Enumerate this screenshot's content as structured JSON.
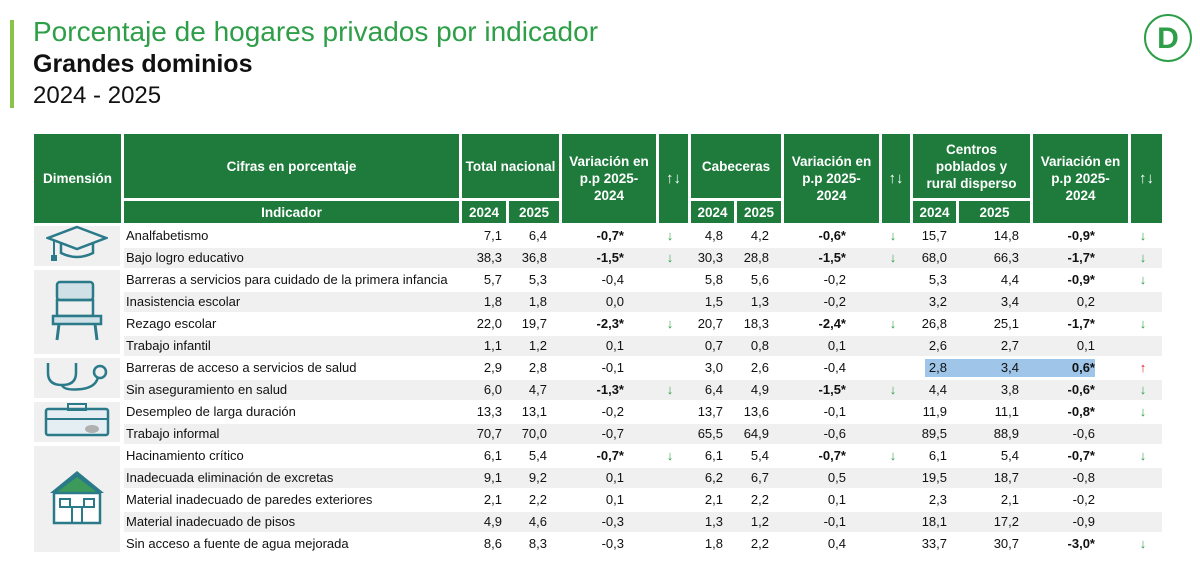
{
  "title": "Porcentaje de hogares privados por indicador",
  "subtitle": "Grandes dominios",
  "years": "2024 - 2025",
  "logo_letter": "D",
  "colors": {
    "header_bg": "#1e7b3b",
    "title": "#2e9e48",
    "down": "#2e9e48",
    "up": "#e02020",
    "highlight": "#9fc5e8"
  },
  "header": {
    "dimension": "Dimensión",
    "cifras": "Cifras en porcentaje",
    "indicador": "Indicador",
    "total_nacional": "Total nacional",
    "cabeceras": "Cabeceras",
    "centros": "Centros poblados y rural disperso",
    "variacion": "Variación en p.p 2025-2024",
    "arrows": "↑↓",
    "y2024": "2024",
    "y2025": "2025"
  },
  "dimensions": [
    {
      "icon": "graduation-cap-icon",
      "rows": [
        0,
        1
      ]
    },
    {
      "icon": "school-desk-icon",
      "rows": [
        2,
        5
      ]
    },
    {
      "icon": "stethoscope-icon",
      "rows": [
        6,
        7
      ]
    },
    {
      "icon": "briefcase-icon",
      "rows": [
        8,
        9
      ]
    },
    {
      "icon": "house-icon",
      "rows": [
        10,
        14
      ]
    }
  ],
  "rows": [
    {
      "indicador": "Analfabetismo",
      "tn": [
        "7,1",
        "6,4",
        "-0,7*",
        "↓"
      ],
      "cab": [
        "4,8",
        "4,2",
        "-0,6*",
        "↓"
      ],
      "cp": [
        "15,7",
        "14,8",
        "-0,9*",
        "↓"
      ]
    },
    {
      "indicador": "Bajo logro educativo",
      "tn": [
        "38,3",
        "36,8",
        "-1,5*",
        "↓"
      ],
      "cab": [
        "30,3",
        "28,8",
        "-1,5*",
        "↓"
      ],
      "cp": [
        "68,0",
        "66,3",
        "-1,7*",
        "↓"
      ]
    },
    {
      "indicador": "Barreras a servicios para cuidado de la primera infancia",
      "tn": [
        "5,7",
        "5,3",
        "-0,4",
        ""
      ],
      "cab": [
        "5,8",
        "5,6",
        "-0,2",
        ""
      ],
      "cp": [
        "5,3",
        "4,4",
        "-0,9*",
        "↓"
      ]
    },
    {
      "indicador": "Inasistencia escolar",
      "tn": [
        "1,8",
        "1,8",
        "0,0",
        ""
      ],
      "cab": [
        "1,5",
        "1,3",
        "-0,2",
        ""
      ],
      "cp": [
        "3,2",
        "3,4",
        "0,2",
        ""
      ]
    },
    {
      "indicador": "Rezago escolar",
      "tn": [
        "22,0",
        "19,7",
        "-2,3*",
        "↓"
      ],
      "cab": [
        "20,7",
        "18,3",
        "-2,4*",
        "↓"
      ],
      "cp": [
        "26,8",
        "25,1",
        "-1,7*",
        "↓"
      ]
    },
    {
      "indicador": "Trabajo infantil",
      "tn": [
        "1,1",
        "1,2",
        "0,1",
        ""
      ],
      "cab": [
        "0,7",
        "0,8",
        "0,1",
        ""
      ],
      "cp": [
        "2,6",
        "2,7",
        "0,1",
        ""
      ]
    },
    {
      "indicador": "Barreras de acceso a servicios de salud",
      "tn": [
        "2,9",
        "2,8",
        "-0,1",
        ""
      ],
      "cab": [
        "3,0",
        "2,6",
        "-0,4",
        ""
      ],
      "cp": [
        "2,8",
        "3,4",
        "0,6*",
        "↑"
      ]
    },
    {
      "indicador": "Sin aseguramiento en salud",
      "tn": [
        "6,0",
        "4,7",
        "-1,3*",
        "↓"
      ],
      "cab": [
        "6,4",
        "4,9",
        "-1,5*",
        "↓"
      ],
      "cp": [
        "4,4",
        "3,8",
        "-0,6*",
        "↓"
      ]
    },
    {
      "indicador": "Desempleo de larga duración",
      "tn": [
        "13,3",
        "13,1",
        "-0,2",
        ""
      ],
      "cab": [
        "13,7",
        "13,6",
        "-0,1",
        ""
      ],
      "cp": [
        "11,9",
        "11,1",
        "-0,8*",
        "↓"
      ]
    },
    {
      "indicador": "Trabajo informal",
      "tn": [
        "70,7",
        "70,0",
        "-0,7",
        ""
      ],
      "cab": [
        "65,5",
        "64,9",
        "-0,6",
        ""
      ],
      "cp": [
        "89,5",
        "88,9",
        "-0,6",
        ""
      ]
    },
    {
      "indicador": "Hacinamiento crítico",
      "tn": [
        "6,1",
        "5,4",
        "-0,7*",
        "↓"
      ],
      "cab": [
        "6,1",
        "5,4",
        "-0,7*",
        "↓"
      ],
      "cp": [
        "6,1",
        "5,4",
        "-0,7*",
        "↓"
      ]
    },
    {
      "indicador": "Inadecuada eliminación de excretas",
      "tn": [
        "9,1",
        "9,2",
        "0,1",
        ""
      ],
      "cab": [
        "6,2",
        "6,7",
        "0,5",
        ""
      ],
      "cp": [
        "19,5",
        "18,7",
        "-0,8",
        ""
      ]
    },
    {
      "indicador": "Material inadecuado de paredes exteriores",
      "tn": [
        "2,1",
        "2,2",
        "0,1",
        ""
      ],
      "cab": [
        "2,1",
        "2,2",
        "0,1",
        ""
      ],
      "cp": [
        "2,3",
        "2,1",
        "-0,2",
        ""
      ]
    },
    {
      "indicador": "Material inadecuado de pisos",
      "tn": [
        "4,9",
        "4,6",
        "-0,3",
        ""
      ],
      "cab": [
        "1,3",
        "1,2",
        "-0,1",
        ""
      ],
      "cp": [
        "18,1",
        "17,2",
        "-0,9",
        ""
      ]
    },
    {
      "indicador": "Sin acceso a fuente de agua mejorada",
      "tn": [
        "8,6",
        "8,3",
        "-0,3",
        ""
      ],
      "cab": [
        "1,8",
        "2,2",
        "0,4",
        ""
      ],
      "cp": [
        "33,7",
        "30,7",
        "-3,0*",
        "↓"
      ]
    }
  ]
}
